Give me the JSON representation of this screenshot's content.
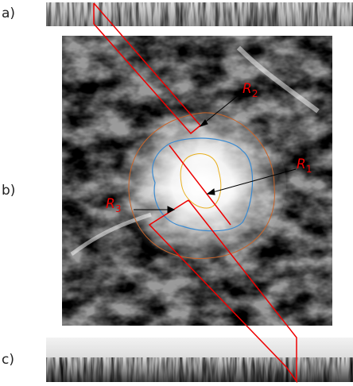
{
  "panels": [
    {
      "label": "a)"
    },
    {
      "label": "b)"
    },
    {
      "label": "c)"
    }
  ],
  "regions": [
    {
      "main": "R",
      "sub": "2"
    },
    {
      "main": "R",
      "sub": "1"
    },
    {
      "main": "R",
      "sub": "3"
    }
  ]
}
